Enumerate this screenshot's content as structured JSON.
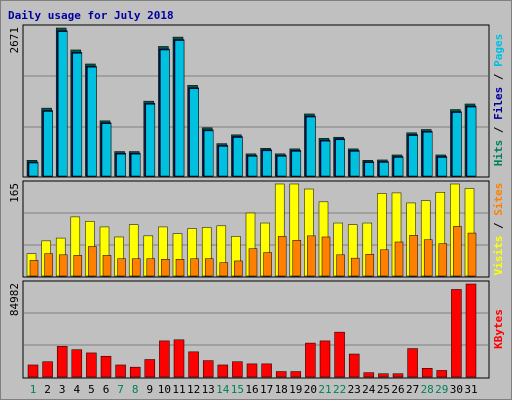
{
  "title": "Daily usage for July 2018",
  "colors": {
    "background": "#c0c0c0",
    "grid": "#808080",
    "hits": "#00805c",
    "files": "#0000a0",
    "pages": "#00c0e0",
    "visits": "#ffff00",
    "sites": "#ff8000",
    "kbytes": "#ff0000",
    "weekend": "#00805c",
    "weekday": "#000000"
  },
  "chart_data": [
    {
      "type": "bar",
      "panel": "hits-files-pages",
      "ymax_label": "2671",
      "ylim": [
        0,
        2671
      ],
      "legend": [
        {
          "name": "Hits",
          "color": "#00805c"
        },
        {
          "name": "Files",
          "color": "#0000a0"
        },
        {
          "name": "Pages",
          "color": "#00c0e0"
        }
      ],
      "categories": [
        "1",
        "2",
        "3",
        "4",
        "5",
        "6",
        "7",
        "8",
        "9",
        "10",
        "11",
        "12",
        "13",
        "14",
        "15",
        "16",
        "17",
        "18",
        "19",
        "20",
        "21",
        "22",
        "23",
        "24",
        "25",
        "26",
        "27",
        "28",
        "29",
        "30",
        "31"
      ],
      "series": [
        {
          "name": "Hits",
          "values": [
            284,
            1225,
            2671,
            2275,
            2022,
            996,
            442,
            442,
            1351,
            2338,
            2507,
            1636,
            869,
            585,
            743,
            400,
            500,
            400,
            490,
            1120,
            680,
            700,
            490,
            284,
            290,
            380,
            780,
            840,
            380,
            1200,
            1300
          ]
        },
        {
          "name": "Files",
          "values": [
            270,
            1200,
            2640,
            2250,
            2000,
            980,
            430,
            430,
            1330,
            2310,
            2480,
            1610,
            850,
            570,
            730,
            390,
            490,
            390,
            480,
            1100,
            665,
            690,
            480,
            275,
            280,
            370,
            765,
            825,
            370,
            1180,
            1280
          ]
        },
        {
          "name": "Pages",
          "values": [
            270,
            1200,
            2640,
            2250,
            2000,
            980,
            430,
            430,
            1330,
            2310,
            2480,
            1610,
            850,
            570,
            730,
            390,
            490,
            390,
            480,
            1100,
            665,
            690,
            480,
            275,
            280,
            370,
            765,
            825,
            370,
            1180,
            1280
          ]
        }
      ]
    },
    {
      "type": "bar",
      "panel": "visits-sites",
      "ymax_label": "165",
      "ylim": [
        0,
        165
      ],
      "legend": [
        {
          "name": "Visits",
          "color": "#ffff00"
        },
        {
          "name": "Sites",
          "color": "#ff8000"
        }
      ],
      "categories": [
        "1",
        "2",
        "3",
        "4",
        "5",
        "6",
        "7",
        "8",
        "9",
        "10",
        "11",
        "12",
        "13",
        "14",
        "15",
        "16",
        "17",
        "18",
        "19",
        "20",
        "21",
        "22",
        "23",
        "24",
        "25",
        "26",
        "27",
        "28",
        "29",
        "30",
        "31"
      ],
      "series": [
        {
          "name": "Visits",
          "values": [
            40,
            63,
            68,
            106,
            98,
            88,
            70,
            92,
            72,
            88,
            76,
            85,
            87,
            90,
            71,
            113,
            95,
            165,
            165,
            156,
            133,
            95,
            92,
            95,
            148,
            149,
            131,
            135,
            150,
            165,
            157
          ]
        },
        {
          "name": "Sites",
          "values": [
            28,
            40,
            38,
            37,
            53,
            37,
            31,
            31,
            31,
            30,
            30,
            31,
            31,
            24,
            27,
            49,
            42,
            71,
            64,
            72,
            70,
            38,
            32,
            39,
            47,
            61,
            73,
            65,
            58,
            89,
            77
          ]
        }
      ]
    },
    {
      "type": "bar",
      "panel": "kbytes",
      "ymax_label": "84982",
      "ylim": [
        0,
        84982
      ],
      "legend": [
        {
          "name": "KBytes",
          "color": "#ff0000"
        }
      ],
      "categories": [
        "1",
        "2",
        "3",
        "4",
        "5",
        "6",
        "7",
        "8",
        "9",
        "10",
        "11",
        "12",
        "13",
        "14",
        "15",
        "16",
        "17",
        "18",
        "19",
        "20",
        "21",
        "22",
        "23",
        "24",
        "25",
        "26",
        "27",
        "28",
        "29",
        "30",
        "31"
      ],
      "series": [
        {
          "name": "KBytes",
          "values": [
            11000,
            14000,
            28000,
            25000,
            22000,
            19000,
            11000,
            9000,
            16000,
            33000,
            34000,
            23000,
            15000,
            11000,
            14000,
            12000,
            12000,
            5000,
            5000,
            31000,
            33000,
            41000,
            21000,
            4000,
            3000,
            3000,
            26000,
            8000,
            6000,
            80000,
            84982
          ]
        }
      ]
    }
  ]
}
